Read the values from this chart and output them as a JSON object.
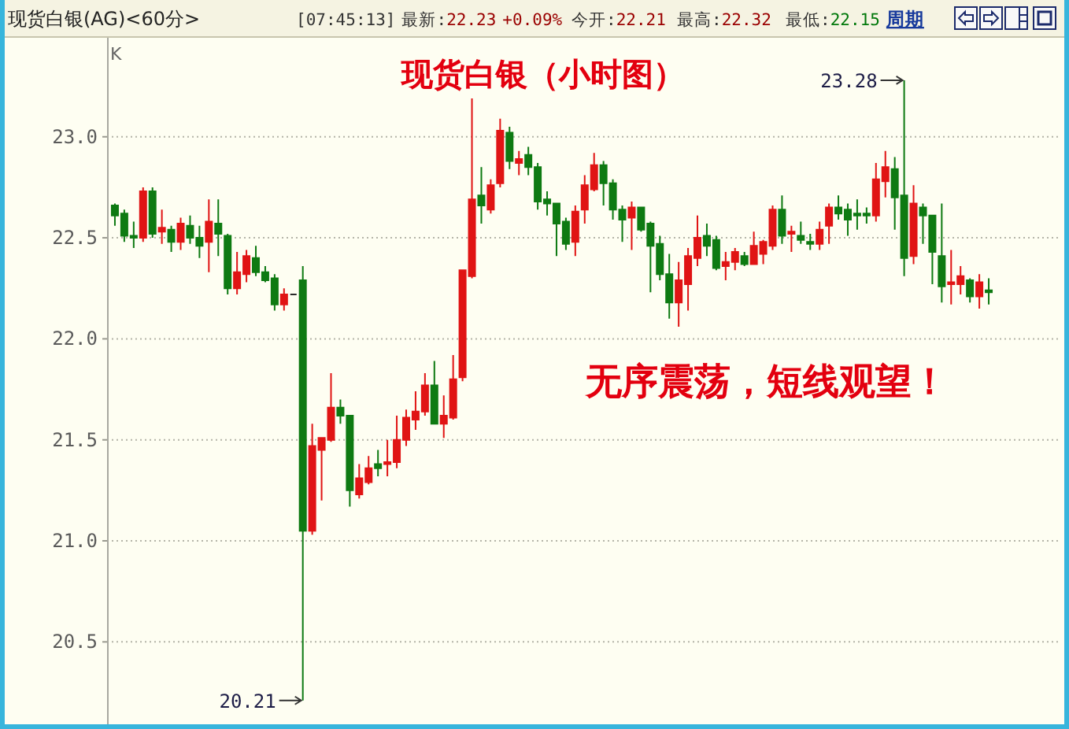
{
  "chart_data": {
    "type": "candlestick",
    "title": "现货白银（小时图）",
    "annotations": [
      "现货白银(AG)<60分>",
      "[07:45:13]",
      "最新:22.23",
      "+0.09%",
      "今开:22.21",
      "最高:22.32",
      "最低:22.15",
      "周期",
      "K",
      "无序震荡，短线观望！",
      "20.21",
      "23.28"
    ],
    "categories": [
      null,
      null,
      null,
      null,
      null,
      null,
      null,
      null,
      null,
      null,
      null,
      null,
      null,
      null,
      null,
      null,
      null,
      null,
      null,
      null,
      null,
      null,
      null,
      null,
      null,
      null,
      null,
      null,
      null,
      null,
      null,
      null,
      null,
      null,
      null,
      null,
      null,
      null,
      null,
      null,
      null,
      null,
      null,
      null,
      null,
      null,
      null,
      null,
      null,
      null,
      null,
      null,
      null,
      null,
      null,
      null,
      null,
      null,
      null,
      null,
      null,
      null,
      null,
      null,
      null,
      null,
      null,
      null,
      null,
      null,
      null,
      null,
      null,
      null,
      null,
      null,
      null,
      null,
      null,
      null,
      null,
      null,
      null,
      null,
      null,
      null,
      null,
      null,
      null,
      null,
      null,
      null,
      null,
      null
    ],
    "ohlc": [
      [
        22.66,
        22.67,
        22.56,
        22.61
      ],
      [
        22.62,
        22.64,
        22.48,
        22.51
      ],
      [
        22.51,
        22.58,
        22.45,
        22.5
      ],
      [
        22.5,
        22.75,
        22.48,
        22.73
      ],
      [
        22.73,
        22.75,
        22.5,
        22.52
      ],
      [
        22.53,
        22.64,
        22.47,
        22.55
      ],
      [
        22.54,
        22.56,
        22.43,
        22.48
      ],
      [
        22.48,
        22.6,
        22.44,
        22.57
      ],
      [
        22.56,
        22.61,
        22.47,
        22.5
      ],
      [
        22.5,
        22.56,
        22.4,
        22.46
      ],
      [
        22.48,
        22.69,
        22.33,
        22.58
      ],
      [
        22.57,
        22.69,
        22.41,
        22.52
      ],
      [
        22.51,
        22.52,
        22.22,
        22.25
      ],
      [
        22.25,
        22.43,
        22.22,
        22.33
      ],
      [
        22.32,
        22.44,
        22.28,
        22.41
      ],
      [
        22.4,
        22.46,
        22.31,
        22.33
      ],
      [
        22.33,
        22.36,
        22.28,
        22.29
      ],
      [
        22.3,
        22.32,
        22.14,
        22.17
      ],
      [
        22.17,
        22.25,
        22.14,
        22.22
      ],
      [
        22.22,
        22.22,
        22.22,
        22.22
      ],
      [
        22.29,
        22.36,
        20.21,
        21.05
      ],
      [
        21.05,
        21.58,
        21.03,
        21.47
      ],
      [
        21.45,
        21.51,
        21.2,
        21.51
      ],
      [
        21.5,
        21.83,
        21.49,
        21.66
      ],
      [
        21.66,
        21.7,
        21.58,
        21.62
      ],
      [
        21.62,
        21.62,
        21.17,
        21.25
      ],
      [
        21.23,
        21.38,
        21.21,
        21.31
      ],
      [
        21.29,
        21.42,
        21.28,
        21.36
      ],
      [
        21.38,
        21.45,
        21.32,
        21.36
      ],
      [
        21.38,
        21.5,
        21.32,
        21.39
      ],
      [
        21.39,
        21.62,
        21.36,
        21.5
      ],
      [
        21.5,
        21.65,
        21.47,
        21.61
      ],
      [
        21.6,
        21.74,
        21.55,
        21.64
      ],
      [
        21.64,
        21.83,
        21.62,
        21.77
      ],
      [
        21.77,
        21.89,
        21.58,
        21.58
      ],
      [
        21.58,
        21.72,
        21.51,
        21.62
      ],
      [
        21.61,
        21.92,
        21.6,
        21.8
      ],
      [
        21.81,
        22.34,
        21.79,
        22.34
      ],
      [
        22.31,
        23.19,
        22.3,
        22.69
      ],
      [
        22.71,
        22.85,
        22.57,
        22.66
      ],
      [
        22.64,
        22.79,
        22.62,
        22.76
      ],
      [
        22.77,
        23.09,
        22.75,
        23.03
      ],
      [
        23.02,
        23.05,
        22.84,
        22.88
      ],
      [
        22.87,
        22.93,
        22.81,
        22.89
      ],
      [
        22.91,
        22.95,
        22.81,
        22.85
      ],
      [
        22.85,
        22.87,
        22.64,
        22.68
      ],
      [
        22.69,
        22.73,
        22.61,
        22.67
      ],
      [
        22.67,
        22.67,
        22.41,
        22.57
      ],
      [
        22.58,
        22.6,
        22.44,
        22.47
      ],
      [
        22.48,
        22.66,
        22.41,
        22.63
      ],
      [
        22.64,
        22.81,
        22.57,
        22.76
      ],
      [
        22.74,
        22.92,
        22.73,
        22.86
      ],
      [
        22.86,
        22.88,
        22.66,
        22.77
      ],
      [
        22.77,
        22.79,
        22.59,
        22.64
      ],
      [
        22.64,
        22.66,
        22.48,
        22.59
      ],
      [
        22.6,
        22.68,
        22.44,
        22.65
      ],
      [
        22.65,
        22.65,
        22.53,
        22.54
      ],
      [
        22.57,
        22.58,
        22.23,
        22.46
      ],
      [
        22.47,
        22.51,
        22.29,
        22.32
      ],
      [
        22.32,
        22.42,
        22.1,
        22.18
      ],
      [
        22.18,
        22.38,
        22.06,
        22.29
      ],
      [
        22.27,
        22.45,
        22.14,
        22.41
      ],
      [
        22.4,
        22.61,
        22.36,
        22.5
      ],
      [
        22.51,
        22.57,
        22.41,
        22.46
      ],
      [
        22.49,
        22.51,
        22.34,
        22.35
      ],
      [
        22.36,
        22.43,
        22.29,
        22.38
      ],
      [
        22.38,
        22.45,
        22.34,
        22.43
      ],
      [
        22.41,
        22.43,
        22.36,
        22.37
      ],
      [
        22.37,
        22.53,
        22.37,
        22.46
      ],
      [
        22.42,
        22.49,
        22.37,
        22.48
      ],
      [
        22.46,
        22.66,
        22.44,
        22.64
      ],
      [
        22.64,
        22.71,
        22.47,
        22.51
      ],
      [
        22.52,
        22.56,
        22.43,
        22.53
      ],
      [
        22.51,
        22.58,
        22.47,
        22.49
      ],
      [
        22.48,
        22.52,
        22.44,
        22.47
      ],
      [
        22.47,
        22.58,
        22.44,
        22.54
      ],
      [
        22.56,
        22.67,
        22.47,
        22.65
      ],
      [
        22.65,
        22.71,
        22.59,
        22.62
      ],
      [
        22.64,
        22.67,
        22.51,
        22.59
      ],
      [
        22.62,
        22.69,
        22.54,
        22.61
      ],
      [
        22.62,
        22.65,
        22.57,
        22.61
      ],
      [
        22.61,
        22.87,
        22.58,
        22.79
      ],
      [
        22.78,
        22.93,
        22.7,
        22.85
      ],
      [
        22.84,
        22.9,
        22.54,
        22.7
      ],
      [
        22.71,
        23.28,
        22.31,
        22.4
      ],
      [
        22.41,
        22.76,
        22.37,
        22.67
      ],
      [
        22.65,
        22.67,
        22.47,
        22.61
      ],
      [
        22.61,
        22.61,
        22.27,
        22.43
      ],
      [
        22.41,
        22.67,
        22.18,
        22.26
      ],
      [
        22.27,
        22.44,
        22.17,
        22.28
      ],
      [
        22.27,
        22.36,
        22.22,
        22.31
      ],
      [
        22.29,
        22.3,
        22.18,
        22.21
      ],
      [
        22.21,
        22.32,
        22.15,
        22.28
      ],
      [
        22.24,
        22.3,
        22.17,
        22.23
      ]
    ],
    "ylim": [
      20.1,
      23.49
    ],
    "yticks": [
      20.5,
      {
        "value": 21,
        "label": "21.0"
      },
      21.5,
      {
        "value": 22,
        "label": "22.0"
      },
      22.5,
      {
        "value": 23,
        "label": "23.0"
      }
    ],
    "grid": "y",
    "tick_labels": "y"
  }
}
